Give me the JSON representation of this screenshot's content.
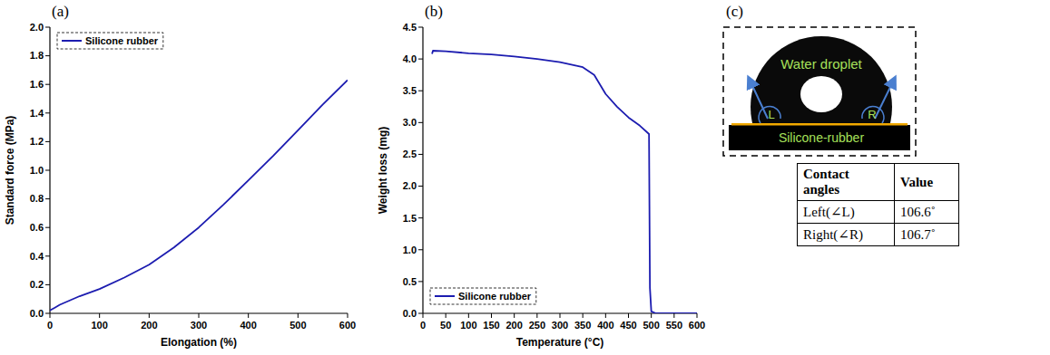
{
  "chart_data": [
    {
      "type": "line",
      "panel": "(a)",
      "x_label": "Elongation (%)",
      "y_label": "Standard force (MPa)",
      "x": [
        0,
        10,
        20,
        40,
        60,
        100,
        150,
        200,
        250,
        300,
        350,
        400,
        450,
        500,
        550,
        600
      ],
      "series": [
        {
          "name": "Silicone rubber",
          "color": "#1c1cb0",
          "values": [
            0.02,
            0.04,
            0.06,
            0.09,
            0.12,
            0.17,
            0.25,
            0.34,
            0.46,
            0.6,
            0.76,
            0.93,
            1.1,
            1.28,
            1.46,
            1.63
          ]
        }
      ],
      "xlim": [
        0,
        600
      ],
      "xticks": [
        0,
        100,
        200,
        300,
        400,
        500,
        600
      ],
      "ylim": [
        0,
        2
      ],
      "yticks": [
        {
          "value": 0,
          "label": "0.0"
        },
        {
          "value": 0.2,
          "label": "0.2"
        },
        {
          "value": 0.4,
          "label": "0.4"
        },
        {
          "value": 0.6,
          "label": "0.6"
        },
        {
          "value": 0.8,
          "label": "0.8"
        },
        {
          "value": 1,
          "label": "1.0"
        },
        {
          "value": 1.2,
          "label": "1.2"
        },
        {
          "value": 1.4,
          "label": "1.4"
        },
        {
          "value": 1.6,
          "label": "1.6"
        },
        {
          "value": 1.8,
          "label": "1.8"
        },
        {
          "value": 2,
          "label": "2.0"
        }
      ],
      "legend": "upper left",
      "grid": false
    },
    {
      "type": "line",
      "panel": "(b)",
      "x_label": "Temperature (°C)",
      "y_label": "Weight loss (mg)",
      "x": [
        20,
        22,
        50,
        100,
        150,
        200,
        250,
        300,
        350,
        375,
        400,
        425,
        450,
        475,
        495,
        497,
        500,
        510,
        550,
        600
      ],
      "series": [
        {
          "name": "Silicone rubber",
          "color": "#1c1cb0",
          "values": [
            4.08,
            4.13,
            4.12,
            4.09,
            4.07,
            4.04,
            4.0,
            3.95,
            3.87,
            3.75,
            3.45,
            3.25,
            3.08,
            2.95,
            2.82,
            0.4,
            0.03,
            0,
            0,
            0
          ]
        }
      ],
      "xlim": [
        0,
        600
      ],
      "xticks": [
        0,
        50,
        100,
        150,
        200,
        250,
        300,
        350,
        400,
        450,
        500,
        550,
        600
      ],
      "ylim": [
        0,
        4.5
      ],
      "yticks": [
        {
          "value": 0,
          "label": "0.0"
        },
        {
          "value": 0.5,
          "label": "0.5"
        },
        {
          "value": 1,
          "label": "1.0"
        },
        {
          "value": 1.5,
          "label": "1.5"
        },
        {
          "value": 2,
          "label": "2.0"
        },
        {
          "value": 2.5,
          "label": "2.5"
        },
        {
          "value": 3,
          "label": "3.0"
        },
        {
          "value": 3.5,
          "label": "3.5"
        },
        {
          "value": 4,
          "label": "4.0"
        },
        {
          "value": 4.5,
          "label": "4.5"
        }
      ],
      "legend": "lower left",
      "grid": false
    }
  ],
  "panel_c": {
    "panel": "(c)",
    "diagram": {
      "droplet": "Water droplet",
      "left": "L",
      "right": "R",
      "substrate": "Silicone-rubber"
    },
    "table": {
      "header": [
        "Contact angles",
        "Value"
      ],
      "rows": [
        [
          "Left(∠L)",
          "106.6˚"
        ],
        [
          "Right(∠R)",
          "106.7˚"
        ]
      ]
    }
  }
}
